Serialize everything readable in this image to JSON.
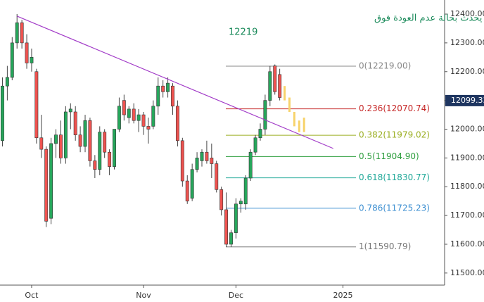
{
  "chart_data": {
    "type": "candlestick",
    "annotation": [
      "سيناريو قد يحدث بحالة عدم العودة فوق",
      "12219"
    ],
    "categories": [
      null,
      null,
      null,
      null,
      null,
      null,
      "Oct",
      null,
      null,
      null,
      null,
      null,
      null,
      null,
      null,
      null,
      null,
      null,
      null,
      null,
      null,
      null,
      null,
      null,
      null,
      null,
      null,
      null,
      null,
      "Nov",
      null,
      null,
      null,
      null,
      null,
      null,
      null,
      null,
      null,
      null,
      null,
      null,
      null,
      null,
      null,
      null,
      null,
      null,
      "Dec",
      null,
      null,
      null,
      null,
      null,
      null,
      null,
      null,
      null,
      null,
      null,
      null,
      null,
      null,
      null,
      null,
      null,
      null,
      null,
      null,
      null,
      "2025"
    ],
    "open": [
      11960,
      12150,
      12180,
      12300,
      12370,
      12300,
      12230,
      12200,
      11970,
      11930,
      11690,
      11950,
      11980,
      11900,
      12060,
      12060,
      11980,
      11940,
      12030,
      11890,
      11860,
      11990,
      11920,
      11870,
      12000,
      12100,
      12040,
      12070,
      12030,
      12050,
      12010,
      12010,
      12080,
      12150,
      12130,
      12150,
      12080,
      11960,
      11820,
      11760,
      11860,
      11890,
      11920,
      11900,
      11880,
      11790,
      11720,
      11600,
      11640,
      11740,
      11740,
      11830,
      11920,
      11970,
      12000,
      12100,
      12220,
      12190,
      null,
      null,
      null,
      null,
      null,
      null,
      null,
      null,
      null,
      null,
      null,
      null,
      null
    ],
    "high": [
      12180,
      12220,
      12320,
      12400,
      12380,
      12330,
      12280,
      12210,
      12050,
      11940,
      11970,
      12000,
      12030,
      12080,
      12090,
      12080,
      12010,
      12050,
      12040,
      11910,
      12010,
      12000,
      11930,
      12000,
      12110,
      12120,
      12080,
      12090,
      12070,
      12060,
      12040,
      12100,
      12180,
      12170,
      12180,
      12160,
      12100,
      11970,
      11840,
      11880,
      11920,
      11930,
      11960,
      11950,
      11890,
      11800,
      11780,
      11650,
      11760,
      11760,
      11840,
      11930,
      11980,
      12020,
      12120,
      12220,
      12225,
      12210,
      null,
      null,
      null,
      null,
      null,
      null,
      null,
      null,
      null,
      null,
      null,
      null,
      null
    ],
    "low": [
      11940,
      12100,
      12170,
      12280,
      12280,
      12210,
      12200,
      11950,
      11900,
      11660,
      11670,
      11900,
      11880,
      11880,
      12000,
      11960,
      11920,
      11920,
      11870,
      11830,
      11840,
      11900,
      11840,
      11860,
      11990,
      12030,
      12020,
      12020,
      11990,
      11980,
      11950,
      12000,
      12050,
      12110,
      12110,
      12050,
      11940,
      11800,
      11740,
      11750,
      11850,
      11870,
      11880,
      11830,
      11780,
      11700,
      11590,
      11590,
      11620,
      11710,
      11720,
      11820,
      11910,
      11960,
      11980,
      12080,
      12120,
      12100,
      null,
      null,
      null,
      null,
      null,
      null,
      null,
      null,
      null,
      null,
      null,
      null,
      null
    ],
    "close": [
      12150,
      12180,
      12300,
      12370,
      12300,
      12230,
      12250,
      11970,
      11930,
      11680,
      11950,
      11980,
      11900,
      12060,
      12070,
      11980,
      11940,
      12030,
      11890,
      11860,
      11990,
      11920,
      11870,
      12000,
      12080,
      12050,
      12070,
      12030,
      12050,
      12010,
      12000,
      12080,
      12150,
      12130,
      12160,
      12080,
      11960,
      11820,
      11750,
      11860,
      11900,
      11920,
      11890,
      11880,
      11790,
      11720,
      11600,
      11640,
      11740,
      11750,
      11830,
      11920,
      11970,
      12000,
      12100,
      12200,
      12130,
      12110,
      null,
      null,
      null,
      null,
      null,
      null,
      null,
      null,
      null,
      null,
      null,
      null,
      null
    ],
    "up_color": "#26a65b",
    "down_color": "#ef5350",
    "projection": {
      "color": "#f7d36b",
      "open": [
        null,
        null,
        null,
        null,
        null,
        null,
        null,
        null,
        null,
        null,
        null,
        null,
        null,
        null,
        null,
        null,
        null,
        null,
        null,
        null,
        null,
        null,
        null,
        null,
        null,
        null,
        null,
        null,
        null,
        null,
        null,
        null,
        null,
        null,
        null,
        null,
        null,
        null,
        null,
        null,
        null,
        null,
        null,
        null,
        null,
        null,
        null,
        null,
        null,
        null,
        null,
        null,
        null,
        null,
        null,
        null,
        null,
        null,
        12150,
        12110,
        12060,
        12030,
        12040,
        null,
        null,
        null,
        null,
        null,
        null,
        null,
        null
      ],
      "close": [
        null,
        null,
        null,
        null,
        null,
        null,
        null,
        null,
        null,
        null,
        null,
        null,
        null,
        null,
        null,
        null,
        null,
        null,
        null,
        null,
        null,
        null,
        null,
        null,
        null,
        null,
        null,
        null,
        null,
        null,
        null,
        null,
        null,
        null,
        null,
        null,
        null,
        null,
        null,
        null,
        null,
        null,
        null,
        null,
        null,
        null,
        null,
        null,
        null,
        null,
        null,
        null,
        null,
        null,
        null,
        null,
        null,
        null,
        12100,
        12060,
        12010,
        11990,
        11990,
        null,
        null,
        null,
        null,
        null,
        null,
        null,
        null
      ]
    },
    "trendline": {
      "color": "#a23cc8",
      "start": {
        "index": 3,
        "value": 12393
      },
      "end": {
        "index": 68,
        "value": 11933
      }
    },
    "levels": [
      {
        "value": 12219,
        "label": "0(12219.00)",
        "color": "#888888"
      },
      {
        "value": 12070.74,
        "label": "0.236(12070.74)",
        "color": "#c62828"
      },
      {
        "value": 11979.02,
        "label": "0.382(11979.02)",
        "color": "#9aae20"
      },
      {
        "value": 11904.9,
        "label": "0.5(11904.90)",
        "color": "#2e9e3e"
      },
      {
        "value": 11830.77,
        "label": "0.618(11830.77)",
        "color": "#1fa898"
      },
      {
        "value": 11725.23,
        "label": "0.786(11725.23)",
        "color": "#3d8fd1"
      },
      {
        "value": 11590.79,
        "label": "1(11590.79)",
        "color": "#777777"
      }
    ],
    "last_price": 12099.33,
    "last_price_color": "#1e3560",
    "ylim": [
      11458,
      12449
    ],
    "yticks": [
      {
        "value": 11500,
        "label": "11500.00"
      },
      {
        "value": 11600,
        "label": "11600.00"
      },
      {
        "value": 11700,
        "label": "11700.00"
      },
      {
        "value": 11800,
        "label": "11800.00"
      },
      {
        "value": 11900,
        "label": "11900.00"
      },
      {
        "value": 12000,
        "label": "12000.00"
      },
      {
        "value": 12100,
        "label": "12100.00"
      },
      {
        "value": 12200,
        "label": "12200.00"
      },
      {
        "value": 12300,
        "label": "12300.00"
      },
      {
        "value": 12400,
        "label": "12400.00"
      }
    ]
  }
}
